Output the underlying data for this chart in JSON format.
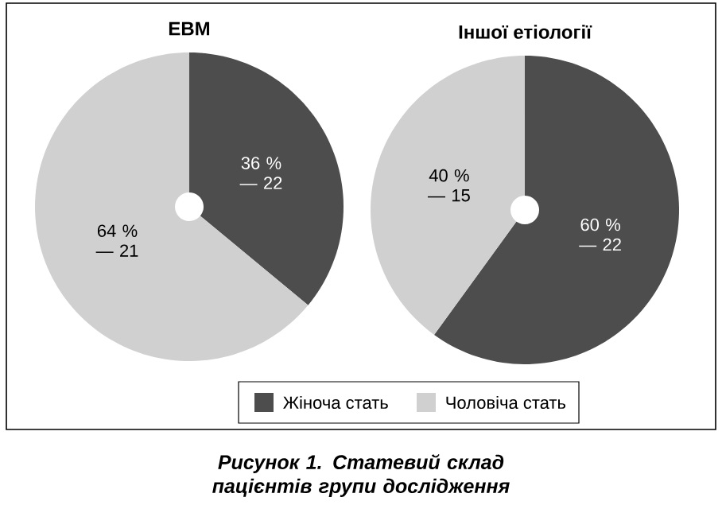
{
  "chart_data": [
    {
      "type": "pie",
      "title": "ЕВМ",
      "categories": [
        "Жіноча стать",
        "Чоловіча стать"
      ],
      "values": [
        36,
        64
      ],
      "colors": [
        "#4d4d4d",
        "#d0d0d0"
      ],
      "value_labels": [
        "36 % — 22",
        "64 % — 21"
      ],
      "legend": "bottom",
      "annotations": [
        "Рисунок 1.  Статевий склад пацієнтів групи дослідження"
      ]
    },
    {
      "type": "pie",
      "title": "Іншої етіології",
      "categories": [
        null,
        null
      ],
      "values": [
        60,
        40
      ],
      "colors": [
        "#4d4d4d",
        "#d0d0d0"
      ],
      "value_labels": [
        "60 % — 22",
        "40 % — 15"
      ]
    }
  ]
}
